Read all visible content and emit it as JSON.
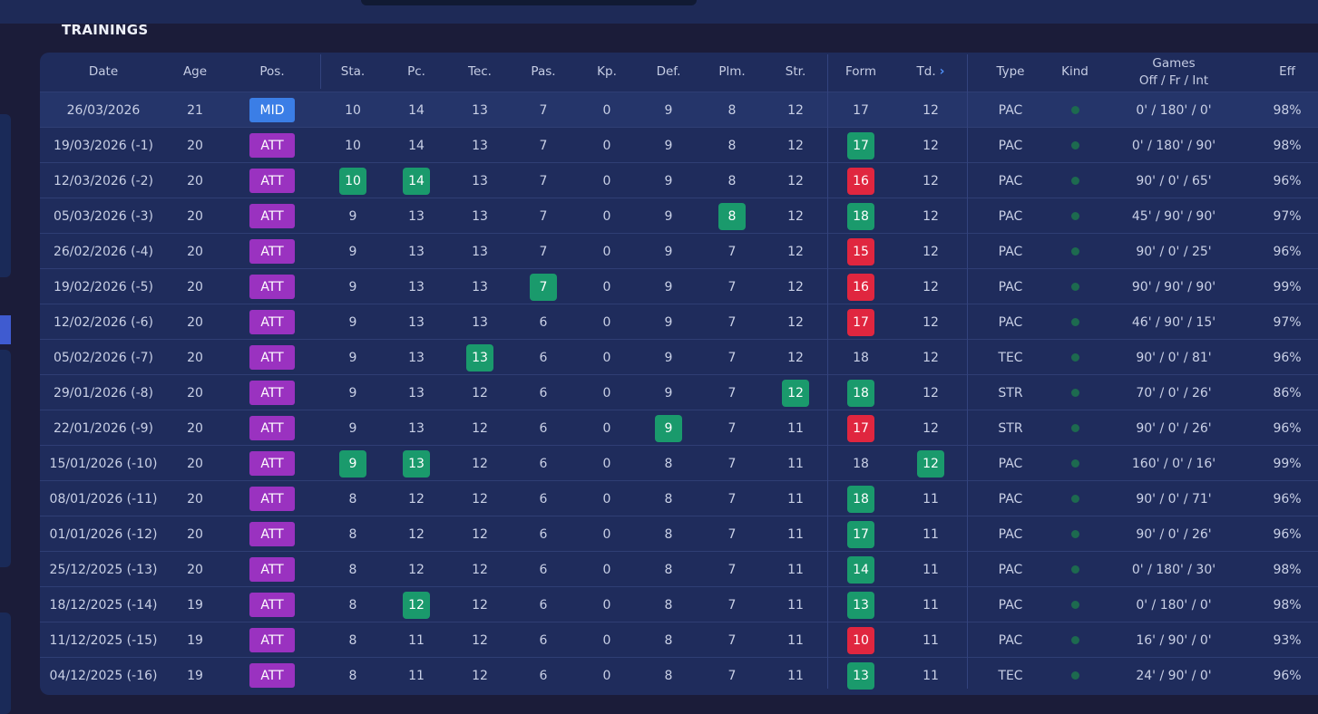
{
  "section_title": "TRAININGS",
  "colors": {
    "green": "#1a9a6c",
    "red": "#e0263f",
    "att": "#9a32c0",
    "mid": "#3b7ee6",
    "kind_dot": "#1d6a4f"
  },
  "headers": {
    "date": "Date",
    "age": "Age",
    "pos": "Pos.",
    "sta": "Sta.",
    "pc": "Pc.",
    "tec": "Tec.",
    "pas": "Pas.",
    "kp": "Kp.",
    "def": "Def.",
    "plm": "Plm.",
    "str": "Str.",
    "form": "Form",
    "td": "Td.",
    "type": "Type",
    "kind": "Kind",
    "games_line1": "Games",
    "games_line2": "Off / Fr / Int",
    "eff": "Eff"
  },
  "icons": {
    "td_sort": "chevron-right-icon",
    "kind": "dot-icon"
  },
  "rows": [
    {
      "date": "26/03/2026",
      "age": "21",
      "pos": "MID",
      "sta": "10",
      "pc": "14",
      "tec": "13",
      "pas": "7",
      "kp": "0",
      "def": "9",
      "plm": "8",
      "str": "12",
      "form": "17",
      "td": "12",
      "type": "PAC",
      "games": "0' / 180' / 0'",
      "eff": "98%",
      "hl": {}
    },
    {
      "date": "19/03/2026 (-1)",
      "age": "20",
      "pos": "ATT",
      "sta": "10",
      "pc": "14",
      "tec": "13",
      "pas": "7",
      "kp": "0",
      "def": "9",
      "plm": "8",
      "str": "12",
      "form": "17",
      "td": "12",
      "type": "PAC",
      "games": "0' / 180' / 90'",
      "eff": "98%",
      "hl": {
        "form": "green"
      }
    },
    {
      "date": "12/03/2026 (-2)",
      "age": "20",
      "pos": "ATT",
      "sta": "10",
      "pc": "14",
      "tec": "13",
      "pas": "7",
      "kp": "0",
      "def": "9",
      "plm": "8",
      "str": "12",
      "form": "16",
      "td": "12",
      "type": "PAC",
      "games": "90' / 0' / 65'",
      "eff": "96%",
      "hl": {
        "sta": "green",
        "pc": "green",
        "form": "red"
      }
    },
    {
      "date": "05/03/2026 (-3)",
      "age": "20",
      "pos": "ATT",
      "sta": "9",
      "pc": "13",
      "tec": "13",
      "pas": "7",
      "kp": "0",
      "def": "9",
      "plm": "8",
      "str": "12",
      "form": "18",
      "td": "12",
      "type": "PAC",
      "games": "45' / 90' / 90'",
      "eff": "97%",
      "hl": {
        "plm": "green",
        "form": "green"
      }
    },
    {
      "date": "26/02/2026 (-4)",
      "age": "20",
      "pos": "ATT",
      "sta": "9",
      "pc": "13",
      "tec": "13",
      "pas": "7",
      "kp": "0",
      "def": "9",
      "plm": "7",
      "str": "12",
      "form": "15",
      "td": "12",
      "type": "PAC",
      "games": "90' / 0' / 25'",
      "eff": "96%",
      "hl": {
        "form": "red"
      }
    },
    {
      "date": "19/02/2026 (-5)",
      "age": "20",
      "pos": "ATT",
      "sta": "9",
      "pc": "13",
      "tec": "13",
      "pas": "7",
      "kp": "0",
      "def": "9",
      "plm": "7",
      "str": "12",
      "form": "16",
      "td": "12",
      "type": "PAC",
      "games": "90' / 90' / 90'",
      "eff": "99%",
      "hl": {
        "pas": "green",
        "form": "red"
      }
    },
    {
      "date": "12/02/2026 (-6)",
      "age": "20",
      "pos": "ATT",
      "sta": "9",
      "pc": "13",
      "tec": "13",
      "pas": "6",
      "kp": "0",
      "def": "9",
      "plm": "7",
      "str": "12",
      "form": "17",
      "td": "12",
      "type": "PAC",
      "games": "46' / 90' / 15'",
      "eff": "97%",
      "hl": {
        "form": "red"
      }
    },
    {
      "date": "05/02/2026 (-7)",
      "age": "20",
      "pos": "ATT",
      "sta": "9",
      "pc": "13",
      "tec": "13",
      "pas": "6",
      "kp": "0",
      "def": "9",
      "plm": "7",
      "str": "12",
      "form": "18",
      "td": "12",
      "type": "TEC",
      "games": "90' / 0' / 81'",
      "eff": "96%",
      "hl": {
        "tec": "green"
      }
    },
    {
      "date": "29/01/2026 (-8)",
      "age": "20",
      "pos": "ATT",
      "sta": "9",
      "pc": "13",
      "tec": "12",
      "pas": "6",
      "kp": "0",
      "def": "9",
      "plm": "7",
      "str": "12",
      "form": "18",
      "td": "12",
      "type": "STR",
      "games": "70' / 0' / 26'",
      "eff": "86%",
      "hl": {
        "str": "green",
        "form": "green"
      }
    },
    {
      "date": "22/01/2026 (-9)",
      "age": "20",
      "pos": "ATT",
      "sta": "9",
      "pc": "13",
      "tec": "12",
      "pas": "6",
      "kp": "0",
      "def": "9",
      "plm": "7",
      "str": "11",
      "form": "17",
      "td": "12",
      "type": "STR",
      "games": "90' / 0' / 26'",
      "eff": "96%",
      "hl": {
        "def": "green",
        "form": "red"
      }
    },
    {
      "date": "15/01/2026 (-10)",
      "age": "20",
      "pos": "ATT",
      "sta": "9",
      "pc": "13",
      "tec": "12",
      "pas": "6",
      "kp": "0",
      "def": "8",
      "plm": "7",
      "str": "11",
      "form": "18",
      "td": "12",
      "type": "PAC",
      "games": "160' / 0' / 16'",
      "eff": "99%",
      "hl": {
        "sta": "green",
        "pc": "green",
        "td": "green"
      }
    },
    {
      "date": "08/01/2026 (-11)",
      "age": "20",
      "pos": "ATT",
      "sta": "8",
      "pc": "12",
      "tec": "12",
      "pas": "6",
      "kp": "0",
      "def": "8",
      "plm": "7",
      "str": "11",
      "form": "18",
      "td": "11",
      "type": "PAC",
      "games": "90' / 0' / 71'",
      "eff": "96%",
      "hl": {
        "form": "green"
      }
    },
    {
      "date": "01/01/2026 (-12)",
      "age": "20",
      "pos": "ATT",
      "sta": "8",
      "pc": "12",
      "tec": "12",
      "pas": "6",
      "kp": "0",
      "def": "8",
      "plm": "7",
      "str": "11",
      "form": "17",
      "td": "11",
      "type": "PAC",
      "games": "90' / 0' / 26'",
      "eff": "96%",
      "hl": {
        "form": "green"
      }
    },
    {
      "date": "25/12/2025 (-13)",
      "age": "20",
      "pos": "ATT",
      "sta": "8",
      "pc": "12",
      "tec": "12",
      "pas": "6",
      "kp": "0",
      "def": "8",
      "plm": "7",
      "str": "11",
      "form": "14",
      "td": "11",
      "type": "PAC",
      "games": "0' / 180' / 30'",
      "eff": "98%",
      "hl": {
        "form": "green"
      }
    },
    {
      "date": "18/12/2025 (-14)",
      "age": "19",
      "pos": "ATT",
      "sta": "8",
      "pc": "12",
      "tec": "12",
      "pas": "6",
      "kp": "0",
      "def": "8",
      "plm": "7",
      "str": "11",
      "form": "13",
      "td": "11",
      "type": "PAC",
      "games": "0' / 180' / 0'",
      "eff": "98%",
      "hl": {
        "pc": "green",
        "form": "green"
      }
    },
    {
      "date": "11/12/2025 (-15)",
      "age": "19",
      "pos": "ATT",
      "sta": "8",
      "pc": "11",
      "tec": "12",
      "pas": "6",
      "kp": "0",
      "def": "8",
      "plm": "7",
      "str": "11",
      "form": "10",
      "td": "11",
      "type": "PAC",
      "games": "16' / 90' / 0'",
      "eff": "93%",
      "hl": {
        "form": "red"
      }
    },
    {
      "date": "04/12/2025 (-16)",
      "age": "19",
      "pos": "ATT",
      "sta": "8",
      "pc": "11",
      "tec": "12",
      "pas": "6",
      "kp": "0",
      "def": "8",
      "plm": "7",
      "str": "11",
      "form": "13",
      "td": "11",
      "type": "TEC",
      "games": "24' / 90' / 0'",
      "eff": "96%",
      "hl": {
        "form": "green"
      }
    }
  ]
}
